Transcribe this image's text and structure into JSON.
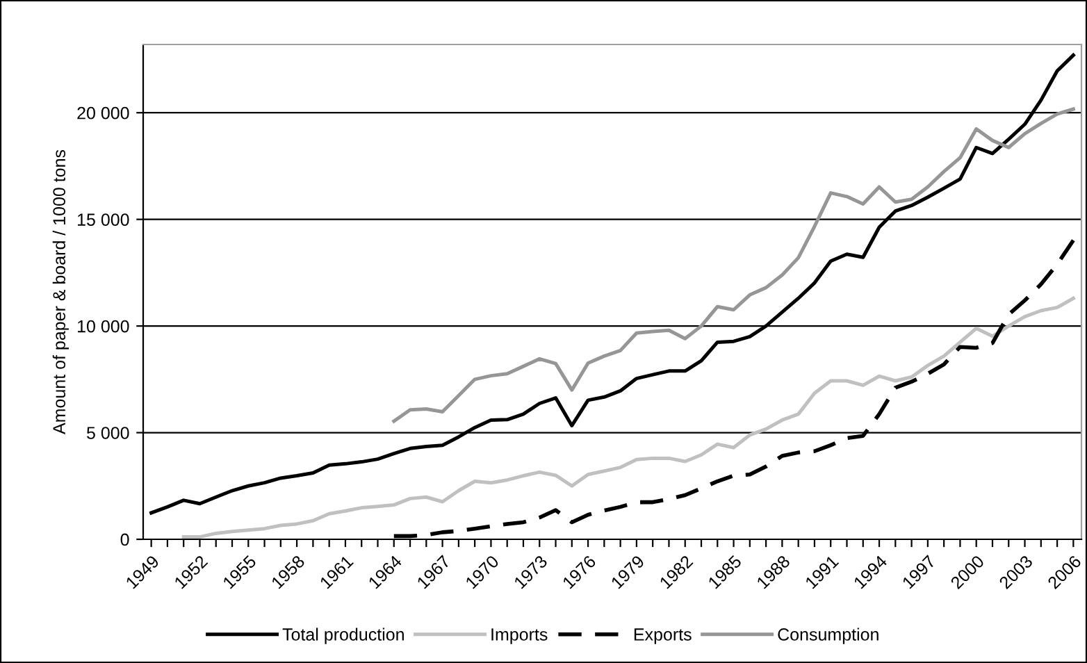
{
  "chart_data": {
    "type": "line",
    "ylabel": "Amount of paper & board / 1000 tons",
    "categories": [
      "1949",
      null,
      null,
      "1952",
      null,
      null,
      "1955",
      null,
      null,
      "1958",
      null,
      null,
      "1961",
      null,
      null,
      "1964",
      null,
      null,
      "1967",
      null,
      null,
      "1970",
      null,
      null,
      "1973",
      null,
      null,
      "1976",
      null,
      null,
      "1979",
      null,
      null,
      "1982",
      null,
      null,
      "1985",
      null,
      null,
      "1988",
      null,
      null,
      "1991",
      null,
      null,
      "1994",
      null,
      null,
      "1997",
      null,
      null,
      "2000",
      null,
      null,
      "2003",
      null,
      null,
      "2006"
    ],
    "series": [
      {
        "name": "Total production",
        "color": "#000000",
        "line_style": "solid",
        "values": [
          1240,
          1520,
          1830,
          1670,
          1980,
          2280,
          2500,
          2650,
          2870,
          2980,
          3110,
          3480,
          3540,
          3630,
          3760,
          4020,
          4260,
          4350,
          4410,
          4800,
          5240,
          5590,
          5610,
          5870,
          6370,
          6630,
          5330,
          6520,
          6670,
          6960,
          7540,
          7720,
          7890,
          7890,
          8370,
          9240,
          9280,
          9500,
          10000,
          10650,
          11300,
          12020,
          13040,
          13370,
          13220,
          14630,
          15390,
          15650,
          16040,
          16460,
          16890,
          18370,
          18090,
          18760,
          19460,
          20590,
          21960,
          22700
        ]
      },
      {
        "name": "Imports",
        "color": "#c0c0c0",
        "line_style": "solid",
        "values": [
          null,
          null,
          110,
          110,
          280,
          370,
          430,
          500,
          650,
          720,
          870,
          1200,
          1330,
          1480,
          1540,
          1610,
          1910,
          1980,
          1760,
          2280,
          2720,
          2650,
          2780,
          2980,
          3150,
          3000,
          2500,
          3040,
          3200,
          3370,
          3740,
          3800,
          3800,
          3650,
          3960,
          4460,
          4300,
          4890,
          5170,
          5590,
          5870,
          6850,
          7430,
          7430,
          7220,
          7650,
          7430,
          7610,
          8150,
          8590,
          9240,
          9890,
          9520,
          10000,
          10440,
          10720,
          10870,
          11300
        ]
      },
      {
        "name": "Exports",
        "color": "#000000",
        "line_style": "dashed",
        "values": [
          null,
          null,
          null,
          null,
          null,
          null,
          null,
          null,
          null,
          null,
          null,
          null,
          null,
          null,
          null,
          150,
          150,
          200,
          330,
          390,
          500,
          610,
          720,
          800,
          1020,
          1370,
          800,
          1150,
          1350,
          1520,
          1740,
          1740,
          1890,
          2070,
          2390,
          2720,
          2980,
          3040,
          3410,
          3910,
          4070,
          4130,
          4410,
          4740,
          4850,
          5870,
          7110,
          7390,
          7760,
          8200,
          9020,
          8980,
          9200,
          10540,
          11200,
          11960,
          12890,
          14020
        ]
      },
      {
        "name": "Consumption",
        "color": "#969696",
        "line_style": "solid",
        "values": [
          null,
          null,
          null,
          null,
          null,
          null,
          null,
          null,
          null,
          null,
          null,
          null,
          null,
          null,
          null,
          5540,
          6070,
          6110,
          5980,
          6740,
          7500,
          7670,
          7760,
          8110,
          8460,
          8240,
          7000,
          8260,
          8590,
          8850,
          9670,
          9740,
          9800,
          9410,
          10000,
          10910,
          10760,
          11460,
          11800,
          12390,
          13200,
          14670,
          16240,
          16070,
          15720,
          16520,
          15810,
          15940,
          16520,
          17240,
          17890,
          19240,
          18700,
          18370,
          19020,
          19500,
          19940,
          20170
        ]
      }
    ],
    "ylim": [
      0,
      23200
    ],
    "yticks": [
      0,
      {
        "value": 5000,
        "label": "5 000"
      },
      {
        "value": 10000,
        "label": "10 000"
      },
      {
        "value": 15000,
        "label": "15 000"
      },
      {
        "value": 20000,
        "label": "20 000"
      }
    ],
    "grid": "y",
    "legend": "bottom",
    "marker": "none"
  }
}
